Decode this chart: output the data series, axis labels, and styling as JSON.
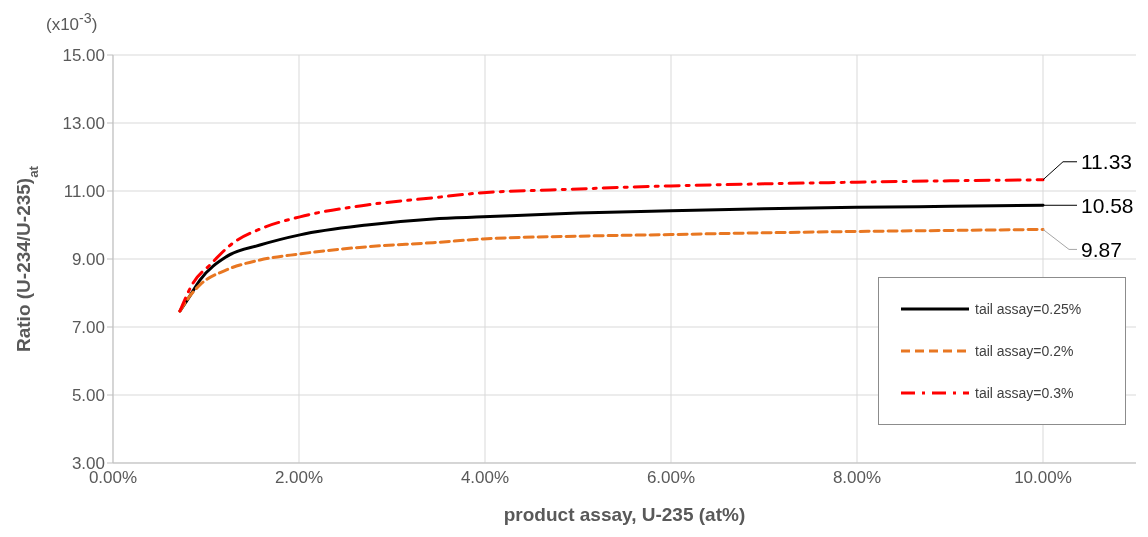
{
  "chart_data": {
    "type": "line",
    "xlabel": "product assay, U-235 (at%)",
    "ylabel": "Ratio (U-234/U-235)$_{at}$",
    "annotations": [
      "(x10$^{-3}$)"
    ],
    "series": [
      {
        "name": "tail assay=0.25%",
        "color": "#000000",
        "line_style": "solid",
        "x": [
          0.72,
          0.81,
          0.935,
          1.22,
          1.58,
          2.01,
          2.73,
          3.44,
          3.98,
          5,
          6,
          7,
          8,
          9,
          10
        ],
        "values": [
          7.47,
          7.84,
          8.38,
          9.07,
          9.41,
          9.71,
          10.0,
          10.18,
          10.24,
          10.35,
          10.42,
          10.48,
          10.52,
          10.55,
          10.58
        ],
        "value_labels": [
          null,
          null,
          null,
          null,
          null,
          null,
          null,
          null,
          null,
          null,
          null,
          null,
          null,
          null,
          "10.58"
        ]
      },
      {
        "name": "tail assay=0.2%",
        "color": "#e87722",
        "line_style": "dashed",
        "x": [
          0.72,
          0.81,
          0.935,
          1.22,
          1.58,
          2.01,
          2.73,
          3.44,
          3.98,
          5,
          6,
          7,
          8,
          9,
          10
        ],
        "values": [
          7.47,
          7.85,
          8.24,
          8.68,
          8.97,
          9.15,
          9.36,
          9.48,
          9.59,
          9.67,
          9.72,
          9.77,
          9.81,
          9.84,
          9.87
        ],
        "value_labels": [
          null,
          null,
          null,
          null,
          null,
          null,
          null,
          null,
          null,
          null,
          null,
          null,
          null,
          null,
          "9.87"
        ]
      },
      {
        "name": "tail assay=0.3%",
        "color": "#ff0000",
        "line_style": "dashdot",
        "x": [
          0.72,
          0.86,
          1.04,
          1.29,
          1.58,
          2.01,
          2.73,
          3.44,
          3.98,
          4.7,
          6,
          7,
          8,
          9,
          10
        ],
        "values": [
          7.47,
          8.29,
          8.82,
          9.47,
          9.88,
          10.24,
          10.59,
          10.8,
          10.95,
          11.03,
          11.15,
          11.21,
          11.26,
          11.3,
          11.33
        ],
        "value_labels": [
          null,
          null,
          null,
          null,
          null,
          null,
          null,
          null,
          null,
          null,
          null,
          null,
          null,
          null,
          "11.33"
        ]
      }
    ],
    "xlim": [
      0,
      11
    ],
    "ylim": [
      3,
      15
    ],
    "xticks": [
      {
        "value": 0,
        "label": "0.00%"
      },
      {
        "value": 2,
        "label": "2.00%"
      },
      {
        "value": 4,
        "label": "4.00%"
      },
      {
        "value": 6,
        "label": "6.00%"
      },
      {
        "value": 8,
        "label": "8.00%"
      },
      {
        "value": 10,
        "label": "10.00%"
      }
    ],
    "yticks": [
      {
        "value": 3,
        "label": "3.00"
      },
      {
        "value": 5,
        "label": "5.00"
      },
      {
        "value": 7,
        "label": "7.00"
      },
      {
        "value": 9,
        "label": "9.00"
      },
      {
        "value": 11,
        "label": "11.00"
      },
      {
        "value": 13,
        "label": "13.00"
      },
      {
        "value": 15,
        "label": "15.00"
      }
    ],
    "grid": true,
    "legend": "bottom right",
    "marker": "none"
  }
}
